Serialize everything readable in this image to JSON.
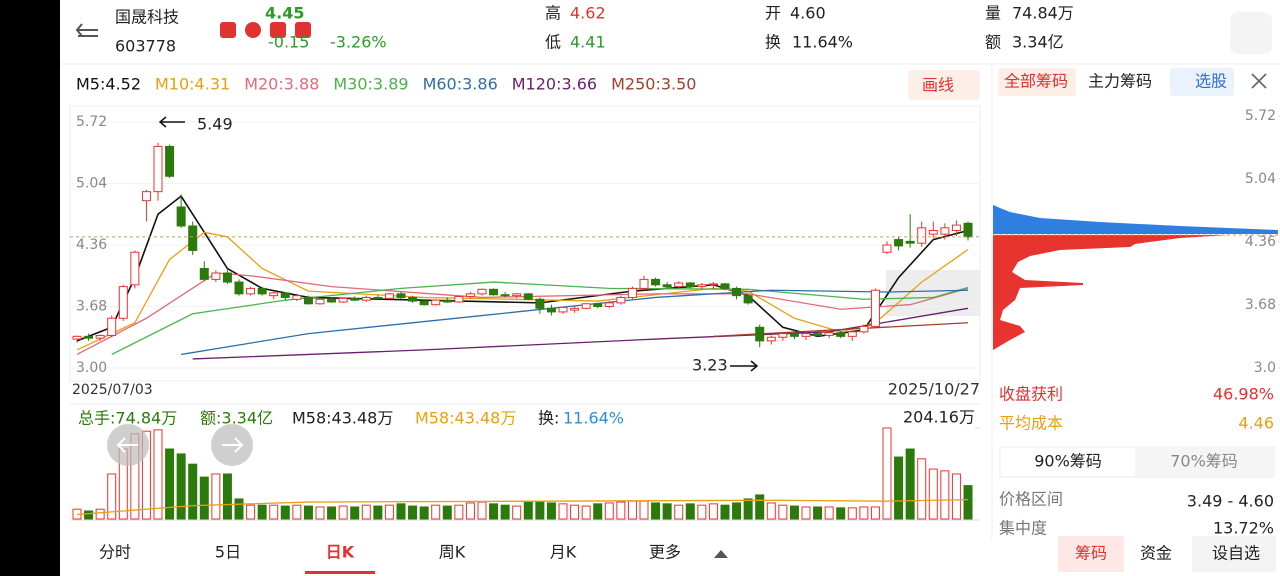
{
  "header": {
    "name": "国晟科技",
    "code": "603778",
    "price": "4.45",
    "change": "-0.15",
    "change_pct": "-3.26%",
    "high_label": "高",
    "high": "4.62",
    "low_label": "低",
    "low": "4.41",
    "open_label": "开",
    "open": "4.60",
    "turnover_label": "换",
    "turnover": "11.64%",
    "volume_label": "量",
    "volume": "74.84万",
    "amount_label": "额",
    "amount": "3.34亿"
  },
  "draw_button": "画线",
  "chart_data": {
    "type": "candlestick",
    "up_color": "#e8342f",
    "down_color": "#2b7a0b",
    "x": [
      "2025/07/03",
      null,
      null,
      null,
      null,
      null,
      null,
      null,
      null,
      null,
      null,
      null,
      null,
      null,
      null,
      null,
      null,
      null,
      null,
      null,
      null,
      null,
      null,
      null,
      null,
      null,
      null,
      null,
      null,
      null,
      null,
      null,
      null,
      null,
      null,
      null,
      null,
      null,
      null,
      null,
      null,
      null,
      null,
      null,
      null,
      null,
      null,
      null,
      null,
      null,
      null,
      null,
      null,
      null,
      null,
      null,
      null,
      null,
      null,
      null,
      null,
      null,
      null,
      null,
      null,
      null,
      null,
      null,
      null,
      null,
      null,
      null,
      null,
      null,
      null,
      null,
      null,
      "2025/10/27"
    ],
    "ohlc": [
      [
        3.32,
        3.36,
        3.28,
        3.35
      ],
      [
        3.35,
        3.38,
        3.3,
        3.33
      ],
      [
        3.33,
        3.37,
        3.3,
        3.36
      ],
      [
        3.36,
        3.58,
        3.34,
        3.55
      ],
      [
        3.55,
        3.92,
        3.52,
        3.9
      ],
      [
        3.92,
        4.3,
        3.88,
        4.28
      ],
      [
        4.85,
        4.97,
        4.62,
        4.95
      ],
      [
        4.95,
        5.49,
        4.85,
        5.45
      ],
      [
        5.45,
        5.47,
        5.1,
        5.12
      ],
      [
        4.78,
        4.92,
        4.55,
        4.57
      ],
      [
        4.57,
        4.62,
        4.25,
        4.3
      ],
      [
        4.1,
        4.18,
        3.96,
        3.98
      ],
      [
        3.98,
        4.08,
        3.95,
        4.05
      ],
      [
        4.05,
        4.1,
        3.93,
        3.95
      ],
      [
        3.95,
        3.98,
        3.8,
        3.82
      ],
      [
        3.82,
        3.9,
        3.8,
        3.88
      ],
      [
        3.88,
        3.9,
        3.8,
        3.82
      ],
      [
        3.8,
        3.85,
        3.76,
        3.83
      ],
      [
        3.83,
        3.84,
        3.75,
        3.78
      ],
      [
        3.76,
        3.82,
        3.74,
        3.8
      ],
      [
        3.78,
        3.8,
        3.7,
        3.71
      ],
      [
        3.71,
        3.77,
        3.7,
        3.76
      ],
      [
        3.76,
        3.78,
        3.72,
        3.73
      ],
      [
        3.73,
        3.78,
        3.72,
        3.77
      ],
      [
        3.77,
        3.79,
        3.74,
        3.75
      ],
      [
        3.75,
        3.8,
        3.73,
        3.78
      ],
      [
        3.78,
        3.81,
        3.76,
        3.77
      ],
      [
        3.77,
        3.83,
        3.76,
        3.82
      ],
      [
        3.82,
        3.84,
        3.76,
        3.78
      ],
      [
        3.78,
        3.8,
        3.72,
        3.74
      ],
      [
        3.74,
        3.76,
        3.69,
        3.7
      ],
      [
        3.7,
        3.76,
        3.69,
        3.75
      ],
      [
        3.75,
        3.78,
        3.72,
        3.73
      ],
      [
        3.73,
        3.8,
        3.72,
        3.79
      ],
      [
        3.79,
        3.84,
        3.77,
        3.82
      ],
      [
        3.82,
        3.88,
        3.8,
        3.87
      ],
      [
        3.87,
        3.88,
        3.8,
        3.81
      ],
      [
        3.81,
        3.84,
        3.78,
        3.8
      ],
      [
        3.8,
        3.83,
        3.77,
        3.82
      ],
      [
        3.82,
        3.83,
        3.75,
        3.76
      ],
      [
        3.76,
        3.78,
        3.6,
        3.66
      ],
      [
        3.66,
        3.7,
        3.58,
        3.62
      ],
      [
        3.62,
        3.68,
        3.6,
        3.67
      ],
      [
        3.64,
        3.68,
        3.61,
        3.66
      ],
      [
        3.66,
        3.72,
        3.65,
        3.71
      ],
      [
        3.71,
        3.72,
        3.66,
        3.68
      ],
      [
        3.68,
        3.74,
        3.66,
        3.72
      ],
      [
        3.72,
        3.8,
        3.7,
        3.78
      ],
      [
        3.78,
        3.9,
        3.76,
        3.88
      ],
      [
        3.88,
        4.02,
        3.86,
        3.98
      ],
      [
        3.98,
        4.0,
        3.9,
        3.92
      ],
      [
        3.92,
        3.95,
        3.88,
        3.9
      ],
      [
        3.9,
        3.96,
        3.88,
        3.94
      ],
      [
        3.94,
        3.95,
        3.88,
        3.9
      ],
      [
        3.9,
        3.94,
        3.87,
        3.92
      ],
      [
        3.92,
        3.95,
        3.88,
        3.93
      ],
      [
        3.93,
        3.94,
        3.86,
        3.88
      ],
      [
        3.88,
        3.9,
        3.76,
        3.8
      ],
      [
        3.8,
        3.82,
        3.7,
        3.72
      ],
      [
        3.45,
        3.48,
        3.23,
        3.3
      ],
      [
        3.3,
        3.36,
        3.26,
        3.34
      ],
      [
        3.34,
        3.4,
        3.3,
        3.38
      ],
      [
        3.38,
        3.42,
        3.32,
        3.35
      ],
      [
        3.35,
        3.4,
        3.31,
        3.38
      ],
      [
        3.38,
        3.42,
        3.34,
        3.36
      ],
      [
        3.36,
        3.4,
        3.33,
        3.39
      ],
      [
        3.39,
        3.41,
        3.33,
        3.35
      ],
      [
        3.35,
        3.42,
        3.3,
        3.4
      ],
      [
        3.4,
        3.48,
        3.38,
        3.46
      ],
      [
        3.46,
        3.88,
        3.45,
        3.86
      ],
      [
        4.28,
        4.4,
        4.26,
        4.36
      ],
      [
        4.42,
        4.45,
        4.3,
        4.35
      ],
      [
        4.4,
        4.7,
        4.33,
        4.38
      ],
      [
        4.38,
        4.62,
        4.34,
        4.55
      ],
      [
        4.48,
        4.62,
        4.44,
        4.52
      ],
      [
        4.48,
        4.6,
        4.42,
        4.55
      ],
      [
        4.52,
        4.63,
        4.46,
        4.58
      ],
      [
        4.6,
        4.62,
        4.41,
        4.45
      ]
    ],
    "ylim": [
      3.0,
      5.72
    ],
    "yticks": [
      5.72,
      5.04,
      4.36,
      3.68,
      {
        "value": 3.0,
        "label": "3.00"
      }
    ],
    "max_label": "5.49",
    "min_label": "3.23",
    "moving_averages": [
      {
        "name": "M5",
        "label": "M5:4.52",
        "color": "#111111",
        "x": [
          0,
          3,
          5,
          7,
          9,
          11,
          13,
          16,
          20,
          30,
          40,
          48,
          55,
          58,
          61,
          64,
          68,
          71,
          74,
          77
        ],
        "values": [
          3.3,
          3.45,
          4.0,
          4.7,
          4.9,
          4.5,
          4.1,
          3.88,
          3.78,
          3.75,
          3.72,
          3.85,
          3.92,
          3.8,
          3.45,
          3.35,
          3.42,
          4.0,
          4.42,
          4.52
        ]
      },
      {
        "name": "M10",
        "label": "M10:4.31",
        "color": "#e8a012",
        "x": [
          0,
          5,
          8,
          11,
          13,
          16,
          20,
          30,
          45,
          55,
          58,
          62,
          66,
          69,
          73,
          77
        ],
        "values": [
          3.2,
          3.5,
          4.2,
          4.5,
          4.45,
          4.1,
          3.85,
          3.78,
          3.74,
          3.88,
          3.85,
          3.55,
          3.4,
          3.5,
          3.95,
          4.31
        ]
      },
      {
        "name": "M20",
        "label": "M20:3.88",
        "color": "#e26a7a",
        "x": [
          0,
          6,
          12,
          15,
          22,
          35,
          50,
          58,
          66,
          72,
          77
        ],
        "values": [
          3.15,
          3.55,
          4.05,
          4.02,
          3.9,
          3.78,
          3.82,
          3.82,
          3.65,
          3.7,
          3.88
        ]
      },
      {
        "name": "M30",
        "label": "M30:3.89",
        "color": "#4bb34b",
        "x": [
          3,
          10,
          18,
          28,
          36,
          46,
          58,
          68,
          74,
          77
        ],
        "values": [
          3.15,
          3.6,
          3.75,
          3.88,
          3.95,
          3.88,
          3.87,
          3.76,
          3.78,
          3.89
        ]
      },
      {
        "name": "M60",
        "label": "M60:3.86",
        "color": "#2f6fa8",
        "x": [
          9,
          20,
          35,
          50,
          60,
          70,
          77
        ],
        "values": [
          3.15,
          3.38,
          3.58,
          3.78,
          3.86,
          3.84,
          3.86
        ]
      },
      {
        "name": "M120",
        "label": "M120:3.66",
        "color": "#6a1f6e",
        "x": [
          10,
          30,
          50,
          65,
          77
        ],
        "values": [
          3.1,
          3.2,
          3.32,
          3.4,
          3.66
        ]
      },
      {
        "name": "M250",
        "label": "M250:3.50",
        "color": "#a0402a",
        "x": [
          55,
          77
        ],
        "values": [
          3.35,
          3.5
        ]
      }
    ],
    "volume": {
      "header": [
        "总手:74.84万",
        "额:3.34亿",
        "M58:43.48万",
        "M58:43.48万",
        "换:",
        "11.64%"
      ],
      "ylim": [
        0,
        204.16
      ],
      "yticks": [
        {
          "value": 204.16,
          "label": "204.16万"
        }
      ],
      "values": [
        22,
        18,
        22,
        101,
        157,
        191,
        197,
        200,
        157,
        146,
        123,
        94,
        101,
        101,
        45,
        31,
        31,
        31,
        29,
        31,
        29,
        27,
        27,
        29,
        27,
        31,
        29,
        31,
        34,
        29,
        27,
        31,
        29,
        31,
        36,
        38,
        34,
        31,
        29,
        38,
        40,
        36,
        34,
        31,
        29,
        34,
        36,
        38,
        40,
        40,
        36,
        34,
        31,
        34,
        31,
        34,
        31,
        36,
        45,
        54,
        36,
        31,
        29,
        27,
        27,
        27,
        25,
        25,
        27,
        27,
        204.16,
        139,
        157,
        135,
        112,
        108,
        101,
        74.84
      ],
      "ma": {
        "color": "#e8a012",
        "x": [
          0,
          10,
          20,
          40,
          60,
          70,
          77
        ],
        "values": [
          10,
          30,
          38,
          40,
          42,
          40,
          43.48
        ]
      }
    }
  },
  "chip_panel": {
    "tabs": [
      "全部筹码",
      "主力筹码",
      "选股"
    ],
    "yticks": [
      5.72,
      5.04,
      4.36,
      3.68,
      {
        "value": 3.0,
        "label": "3.0"
      }
    ],
    "ylim": [
      3.0,
      5.72
    ],
    "profit_label": "收盘获利",
    "profit": "46.98%",
    "avg_cost_label": "平均成本",
    "avg_cost": "4.46",
    "segments": [
      "90%筹码",
      "70%筹码"
    ],
    "range_label": "价格区间",
    "range": "3.49 - 4.60",
    "concentration_label": "集中度",
    "concentration": "13.72%"
  },
  "bottom_tabs": [
    "分时",
    "5日",
    "日K",
    "周K",
    "月K",
    "更多"
  ],
  "bottom_actions": [
    "筹码",
    "资金",
    "设自选"
  ]
}
